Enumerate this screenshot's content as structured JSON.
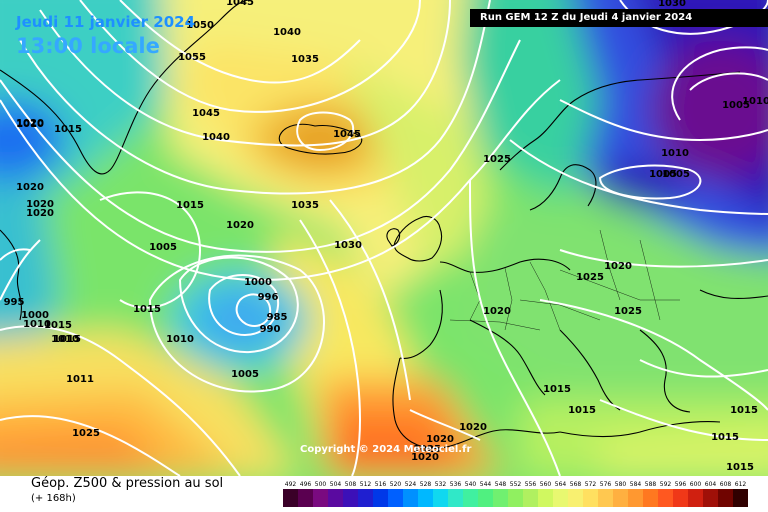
{
  "header": {
    "date": "Jeudi 11 janvier 2024",
    "time": "13:00 locale",
    "run": "Run GEM 12 Z du Jeudi 4 janvier 2024"
  },
  "footer": {
    "product": "Géop. Z500 & pression au sol",
    "step": "(+ 168h)",
    "copyright": "Copyright © 2024 Meteociel.fr"
  },
  "legend": {
    "values": [
      "492",
      "496",
      "500",
      "504",
      "508",
      "512",
      "516",
      "520",
      "524",
      "528",
      "532",
      "536",
      "540",
      "544",
      "548",
      "552",
      "556",
      "560",
      "564",
      "568",
      "572",
      "576",
      "580",
      "584",
      "588",
      "592",
      "596",
      "600",
      "604",
      "608",
      "612"
    ],
    "colors": [
      "#3a0028",
      "#5a0050",
      "#7a0a80",
      "#5a0aa0",
      "#3c10b8",
      "#1f1fd0",
      "#0038e8",
      "#0060ff",
      "#0090ff",
      "#00b8ff",
      "#10d8f0",
      "#30e8c8",
      "#40f0a0",
      "#50f080",
      "#70f070",
      "#90f060",
      "#b0f060",
      "#d0f860",
      "#e8f870",
      "#f8f070",
      "#ffe060",
      "#ffc850",
      "#ffb040",
      "#ff9830",
      "#ff7820",
      "#ff5820",
      "#f03818",
      "#d02010",
      "#a01008",
      "#700400",
      "#300000"
    ]
  },
  "map": {
    "isobar_labels": [
      "1045",
      "1050",
      "1040",
      "1035",
      "1055",
      "1045",
      "1040",
      "1045",
      "1035",
      "1015",
      "1020",
      "1005",
      "1030",
      "1025",
      "1000",
      "996",
      "990",
      "985",
      "1010",
      "1005",
      "1015",
      "1010",
      "1020",
      "1020",
      "1025",
      "1015",
      "1010",
      "1005",
      "1030",
      "1025",
      "1020",
      "1020",
      "1025",
      "1015",
      "1015",
      "1020",
      "1020",
      "1020",
      "1025",
      "1015",
      "1015",
      "1005",
      "1010",
      "1005",
      "1015",
      "995",
      "1000",
      "1015",
      "1010",
      "1011",
      "1020",
      "1010",
      "1015",
      "1020"
    ],
    "palette": {
      "ocean_teal": "#3ec8c0",
      "green": "#70e070",
      "yellow": "#f8f070",
      "orange": "#ffb040",
      "blue_low": "#4090ff",
      "deep_purple": "#5a0aa0",
      "isobar": "#ffffff",
      "coastline": "#000000"
    }
  }
}
